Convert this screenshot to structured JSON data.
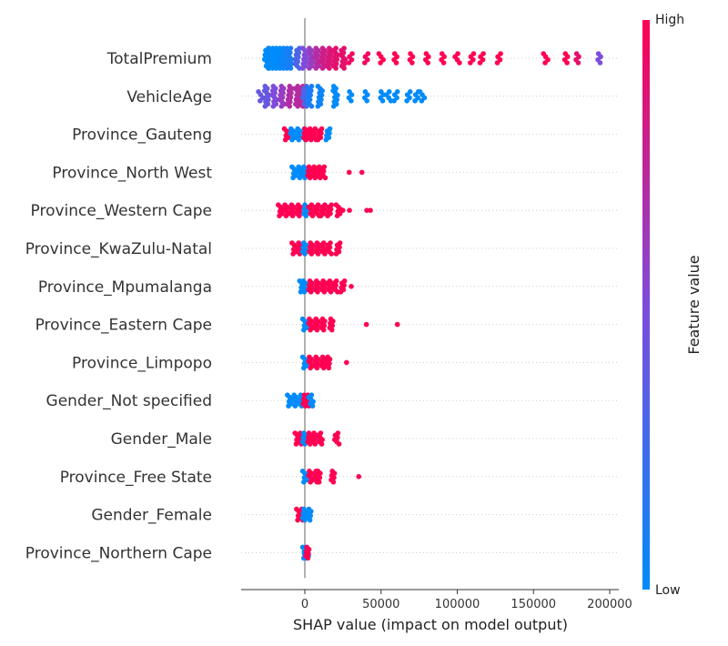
{
  "chart_data": {
    "type": "scatter",
    "subtype": "shap-beeswarm",
    "xlabel": "SHAP value (impact on model output)",
    "xlim": [
      -42000,
      205000
    ],
    "xticks": [
      0,
      50000,
      100000,
      150000,
      200000
    ],
    "xtick_labels": [
      "0",
      "50000",
      "100000",
      "150000",
      "200000"
    ],
    "zero_line": true,
    "grid": "dotted horizontal row guides",
    "colorbar": {
      "label": "Feature value",
      "high_label": "High",
      "low_label": "Low",
      "low_color": "#008bfb",
      "high_color": "#ff0052"
    },
    "features": [
      {
        "name": "TotalPremium",
        "points": [
          {
            "x": -22000,
            "c": 0.0
          },
          {
            "x": -20000,
            "c": 0.0
          },
          {
            "x": -18000,
            "c": 0.0
          },
          {
            "x": -16000,
            "c": 0.0
          },
          {
            "x": -14000,
            "c": 0.05
          },
          {
            "x": -12000,
            "c": 0.05
          },
          {
            "x": -10000,
            "c": 0.1
          },
          {
            "x": -25000,
            "c": 0.0
          },
          {
            "x": -5000,
            "c": 0.3
          },
          {
            "x": 0,
            "c": 0.5
          },
          {
            "x": 4000,
            "c": 0.6
          },
          {
            "x": 8000,
            "c": 0.7
          },
          {
            "x": 12000,
            "c": 0.8
          },
          {
            "x": 16000,
            "c": 0.85
          },
          {
            "x": 20000,
            "c": 0.9
          },
          {
            "x": 25000,
            "c": 0.9
          },
          {
            "x": 30000,
            "c": 0.95
          },
          {
            "x": 40000,
            "c": 0.95
          },
          {
            "x": 50000,
            "c": 1.0
          },
          {
            "x": 60000,
            "c": 1.0
          },
          {
            "x": 70000,
            "c": 1.0
          },
          {
            "x": 80000,
            "c": 1.0
          },
          {
            "x": 90000,
            "c": 1.0
          },
          {
            "x": 100000,
            "c": 1.0
          },
          {
            "x": 110000,
            "c": 1.0
          },
          {
            "x": 116000,
            "c": 1.0
          },
          {
            "x": 127000,
            "c": 1.0
          },
          {
            "x": 158000,
            "c": 1.0
          },
          {
            "x": 172000,
            "c": 1.0
          },
          {
            "x": 179000,
            "c": 0.9
          },
          {
            "x": 193000,
            "c": 0.5
          }
        ]
      },
      {
        "name": "VehicleAge",
        "points": [
          {
            "x": -29000,
            "c": 0.4
          },
          {
            "x": -25000,
            "c": 0.4
          },
          {
            "x": -20000,
            "c": 0.5
          },
          {
            "x": -15000,
            "c": 0.6
          },
          {
            "x": -10000,
            "c": 0.7
          },
          {
            "x": -5000,
            "c": 0.7
          },
          {
            "x": -2000,
            "c": 0.75
          },
          {
            "x": 0,
            "c": 0.3
          },
          {
            "x": 3000,
            "c": 0.1
          },
          {
            "x": 10000,
            "c": 0.05
          },
          {
            "x": 20000,
            "c": 0.0
          },
          {
            "x": 30000,
            "c": 0.0
          },
          {
            "x": 40000,
            "c": 0.0
          },
          {
            "x": 50000,
            "c": 0.0
          },
          {
            "x": 55000,
            "c": 0.0
          },
          {
            "x": 60000,
            "c": 0.0
          },
          {
            "x": 68000,
            "c": 0.0
          },
          {
            "x": 73000,
            "c": 0.0
          },
          {
            "x": 77000,
            "c": 0.0
          }
        ]
      },
      {
        "name": "Province_Gauteng",
        "points": [
          {
            "x": -12000,
            "c": 1.0
          },
          {
            "x": -8000,
            "c": 0.0
          },
          {
            "x": -4000,
            "c": 0.0
          },
          {
            "x": 0,
            "c": 0.0
          },
          {
            "x": 0,
            "c": 1.0
          },
          {
            "x": 3000,
            "c": 1.0
          },
          {
            "x": 6000,
            "c": 1.0
          },
          {
            "x": 10000,
            "c": 1.0
          },
          {
            "x": 15000,
            "c": 0.0
          }
        ]
      },
      {
        "name": "Province_North West",
        "points": [
          {
            "x": -7000,
            "c": 0.0
          },
          {
            "x": -3000,
            "c": 0.0
          },
          {
            "x": 0,
            "c": 0.0
          },
          {
            "x": 3000,
            "c": 1.0
          },
          {
            "x": 6000,
            "c": 1.0
          },
          {
            "x": 9000,
            "c": 1.0
          },
          {
            "x": 12000,
            "c": 1.0
          },
          {
            "x": 28000,
            "c": 1.0
          },
          {
            "x": 36000,
            "c": 1.0
          }
        ]
      },
      {
        "name": "Province_Western Cape",
        "points": [
          {
            "x": -16000,
            "c": 1.0
          },
          {
            "x": -12000,
            "c": 1.0
          },
          {
            "x": -8000,
            "c": 1.0
          },
          {
            "x": -4000,
            "c": 1.0
          },
          {
            "x": 0,
            "c": 0.0
          },
          {
            "x": 4000,
            "c": 1.0
          },
          {
            "x": 8000,
            "c": 1.0
          },
          {
            "x": 12000,
            "c": 1.0
          },
          {
            "x": 16000,
            "c": 1.0
          },
          {
            "x": 22000,
            "c": 1.0
          },
          {
            "x": 26000,
            "c": 1.0
          },
          {
            "x": 30000,
            "c": 1.0
          },
          {
            "x": 41000,
            "c": 1.0
          },
          {
            "x": 43000,
            "c": 1.0
          }
        ]
      },
      {
        "name": "Province_KwaZulu-Natal",
        "points": [
          {
            "x": -7000,
            "c": 1.0
          },
          {
            "x": -3000,
            "c": 1.0
          },
          {
            "x": 0,
            "c": 0.0
          },
          {
            "x": 4000,
            "c": 1.0
          },
          {
            "x": 8000,
            "c": 1.0
          },
          {
            "x": 12000,
            "c": 1.0
          },
          {
            "x": 16000,
            "c": 1.0
          },
          {
            "x": 22000,
            "c": 1.0
          }
        ]
      },
      {
        "name": "Province_Mpumalanga",
        "points": [
          {
            "x": -2000,
            "c": 0.0
          },
          {
            "x": 0,
            "c": 0.0
          },
          {
            "x": 4000,
            "c": 1.0
          },
          {
            "x": 8000,
            "c": 1.0
          },
          {
            "x": 12000,
            "c": 1.0
          },
          {
            "x": 16000,
            "c": 1.0
          },
          {
            "x": 20000,
            "c": 1.0
          },
          {
            "x": 25000,
            "c": 1.0
          },
          {
            "x": 29000,
            "c": 1.0
          }
        ]
      },
      {
        "name": "Province_Eastern Cape",
        "points": [
          {
            "x": 0,
            "c": 0.0
          },
          {
            "x": 4000,
            "c": 1.0
          },
          {
            "x": 8000,
            "c": 1.0
          },
          {
            "x": 12000,
            "c": 1.0
          },
          {
            "x": 17000,
            "c": 1.0
          },
          {
            "x": 40000,
            "c": 1.0
          },
          {
            "x": 60000,
            "c": 1.0
          }
        ]
      },
      {
        "name": "Province_Limpopo",
        "points": [
          {
            "x": 0,
            "c": 0.0
          },
          {
            "x": 4000,
            "c": 1.0
          },
          {
            "x": 8000,
            "c": 1.0
          },
          {
            "x": 12000,
            "c": 1.0
          },
          {
            "x": 15000,
            "c": 1.0
          },
          {
            "x": 27000,
            "c": 1.0
          }
        ]
      },
      {
        "name": "Gender_Not specified",
        "points": [
          {
            "x": -10000,
            "c": 0.0
          },
          {
            "x": -6000,
            "c": 0.0
          },
          {
            "x": -2000,
            "c": 0.0
          },
          {
            "x": 0,
            "c": 1.0
          },
          {
            "x": 2000,
            "c": 1.0
          },
          {
            "x": 4000,
            "c": 0.0
          }
        ]
      },
      {
        "name": "Gender_Male",
        "points": [
          {
            "x": -5000,
            "c": 1.0
          },
          {
            "x": -2000,
            "c": 1.0
          },
          {
            "x": 0,
            "c": 0.0
          },
          {
            "x": 3000,
            "c": 1.0
          },
          {
            "x": 6000,
            "c": 1.0
          },
          {
            "x": 10000,
            "c": 1.0
          },
          {
            "x": 21000,
            "c": 1.0
          }
        ]
      },
      {
        "name": "Province_Free State",
        "points": [
          {
            "x": 0,
            "c": 0.0
          },
          {
            "x": 4000,
            "c": 1.0
          },
          {
            "x": 8000,
            "c": 1.0
          },
          {
            "x": 9000,
            "c": 1.0
          },
          {
            "x": 18000,
            "c": 1.0
          },
          {
            "x": 35000,
            "c": 1.0
          }
        ]
      },
      {
        "name": "Gender_Female",
        "points": [
          {
            "x": -4000,
            "c": 1.0
          },
          {
            "x": -1000,
            "c": 1.0
          },
          {
            "x": 0,
            "c": 0.0
          },
          {
            "x": 3000,
            "c": 0.0
          }
        ]
      },
      {
        "name": "Province_Northern Cape",
        "points": [
          {
            "x": 0,
            "c": 0.0
          },
          {
            "x": 1000,
            "c": 0.0
          },
          {
            "x": 2000,
            "c": 1.0
          }
        ]
      }
    ]
  }
}
